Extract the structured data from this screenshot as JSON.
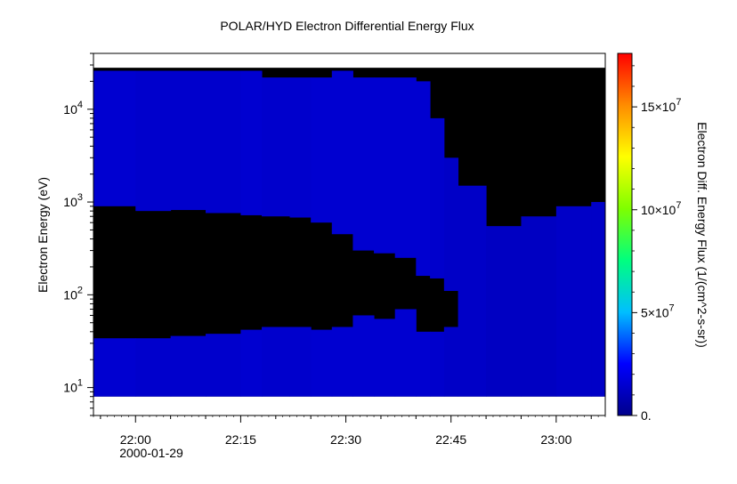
{
  "chart_data": {
    "type": "heatmap",
    "title": "POLAR/HYD  Electron Differential Energy Flux",
    "ylabel": "Electron Energy (eV)",
    "xlabel": "",
    "x_date_label": "2000-01-29",
    "x_range": [
      "21:54",
      "23:07"
    ],
    "x_ticks": [
      "22:00",
      "22:15",
      "22:30",
      "22:45",
      "23:00"
    ],
    "y_scale": "log",
    "y_range": [
      5,
      40000
    ],
    "y_ticks": [
      {
        "base": "10",
        "exp": "1",
        "value": 10
      },
      {
        "base": "10",
        "exp": "2",
        "value": 100
      },
      {
        "base": "10",
        "exp": "3",
        "value": 1000
      },
      {
        "base": "10",
        "exp": "4",
        "value": 10000
      }
    ],
    "colorbar": {
      "label": "Electron Diff. Energy Flux (1/(cm^2-s-sr))",
      "range": [
        0,
        17600000
      ],
      "ticks": [
        {
          "text": "0.",
          "value": 0
        },
        {
          "text": "5×10",
          "exp": "7",
          "value": 5000000
        },
        {
          "text": "10×10",
          "exp": "7",
          "value": 10000000
        },
        {
          "text": "15×10",
          "exp": "7",
          "value": 15000000
        }
      ],
      "colors": [
        "#00008b",
        "#0000ff",
        "#00bfff",
        "#00ff7f",
        "#7fff00",
        "#ffff00",
        "#ff8c00",
        "#ff0000"
      ]
    },
    "data_range_y": [
      8,
      28000
    ],
    "columns": [
      {
        "t": "21:55",
        "top": 26000,
        "gap": [
          900,
          34
        ],
        "flux": 1500000
      },
      {
        "t": "22:00",
        "top": 26000,
        "gap": [
          800,
          34
        ],
        "flux": 1400000
      },
      {
        "t": "22:05",
        "top": 26000,
        "gap": [
          820,
          36
        ],
        "flux": 1400000
      },
      {
        "t": "22:10",
        "top": 26000,
        "gap": [
          760,
          38
        ],
        "flux": 1400000
      },
      {
        "t": "22:15",
        "top": 26000,
        "gap": [
          720,
          42
        ],
        "flux": 1500000
      },
      {
        "t": "22:18",
        "top": 22000,
        "gap": [
          700,
          45
        ],
        "flux": 1400000
      },
      {
        "t": "22:22",
        "top": 22000,
        "gap": [
          680,
          45
        ],
        "flux": 1400000
      },
      {
        "t": "22:25",
        "top": 22000,
        "gap": [
          600,
          42
        ],
        "flux": 1500000
      },
      {
        "t": "22:28",
        "top": 26000,
        "gap": [
          450,
          45
        ],
        "flux": 1500000
      },
      {
        "t": "22:31",
        "top": 22000,
        "gap": [
          300,
          60
        ],
        "flux": 1500000
      },
      {
        "t": "22:34",
        "top": 22000,
        "gap": [
          280,
          55
        ],
        "flux": 1500000
      },
      {
        "t": "22:37",
        "top": 22000,
        "gap": [
          250,
          70
        ],
        "flux": 1500000
      },
      {
        "t": "22:40",
        "top": 20000,
        "gap": [
          160,
          40
        ],
        "flux": 1500000
      },
      {
        "t": "22:42",
        "top": 8000,
        "gap": [
          150,
          40
        ],
        "flux": 1400000
      },
      {
        "t": "22:44",
        "top": 3000,
        "gap": [
          110,
          45
        ],
        "flux": 1300000
      },
      {
        "t": "22:46",
        "top": 1500,
        "gap": null,
        "flux": 1300000
      },
      {
        "t": "22:50",
        "top": 550,
        "gap": null,
        "flux": 1200000
      },
      {
        "t": "22:55",
        "top": 700,
        "gap": null,
        "flux": 1200000
      },
      {
        "t": "23:00",
        "top": 900,
        "gap": null,
        "flux": 1300000
      },
      {
        "t": "23:05",
        "top": 1000,
        "gap": null,
        "flux": 1300000
      }
    ]
  }
}
